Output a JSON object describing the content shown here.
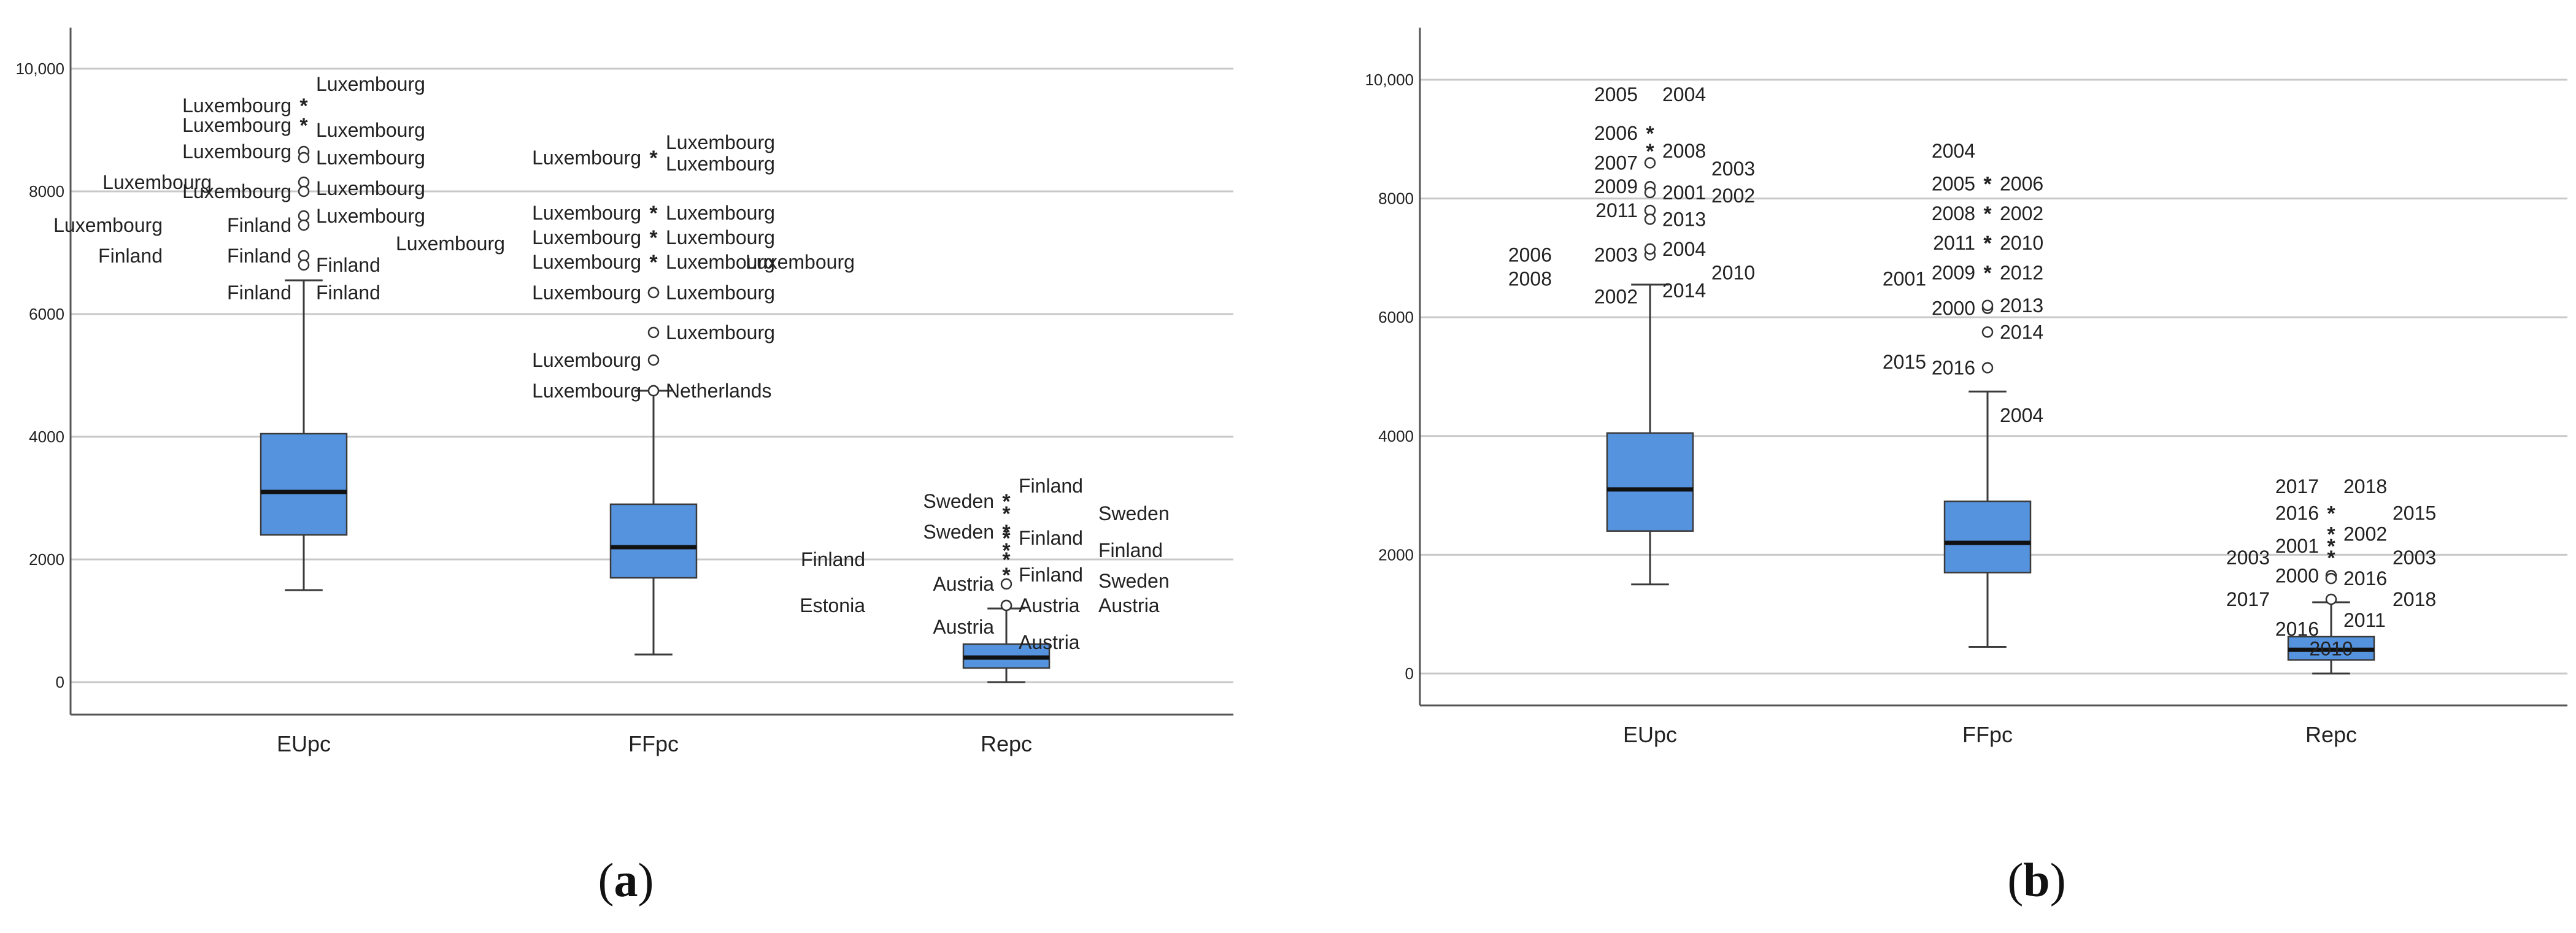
{
  "colors": {
    "box_fill": "#5593de",
    "box_stroke": "#3a3a3a",
    "grid": "#c8c8c8",
    "axis": "#555555",
    "text": "#222222"
  },
  "chart_data": [
    {
      "panel": "a",
      "caption": "a",
      "type": "boxplot",
      "ylim": [
        0,
        10000
      ],
      "yticks": [
        0,
        2000,
        4000,
        6000,
        8000,
        10000
      ],
      "yticklabels": [
        "0",
        "2000",
        "4000",
        "6000",
        "8000",
        "10,000"
      ],
      "grid": true,
      "categories": [
        "EUpc",
        "FFpc",
        "Repc"
      ],
      "boxes": [
        {
          "name": "EUpc",
          "min": 1500,
          "q1": 2400,
          "median": 3100,
          "q3": 4050,
          "max": 6550
        },
        {
          "name": "FFpc",
          "min": 450,
          "q1": 1700,
          "median": 2200,
          "q3": 2900,
          "max": 4750
        },
        {
          "name": "Repc",
          "min": 0,
          "q1": 230,
          "median": 400,
          "q3": 620,
          "max": 1200
        }
      ],
      "outlier_labels": [
        {
          "group": "EUpc",
          "text": "Luxembourg",
          "y": 9750,
          "side": "right",
          "marker": ""
        },
        {
          "group": "EUpc",
          "text": "Luxembourg",
          "y": 9400,
          "side": "left",
          "marker": "star"
        },
        {
          "group": "EUpc",
          "text": "Luxembourg",
          "y": 9080,
          "side": "left",
          "marker": "star"
        },
        {
          "group": "EUpc",
          "text": "Luxembourg",
          "y": 9000,
          "side": "right",
          "marker": ""
        },
        {
          "group": "EUpc",
          "text": "Luxembourg",
          "y": 8650,
          "side": "left",
          "marker": "circle"
        },
        {
          "group": "EUpc",
          "text": "Luxembourg",
          "y": 8550,
          "side": "right",
          "marker": "circle"
        },
        {
          "group": "EUpc",
          "text": "Luxembourg",
          "y": 8150,
          "side": "far-left",
          "marker": "circle"
        },
        {
          "group": "EUpc",
          "text": "Luxembourg",
          "y": 8000,
          "side": "left",
          "marker": "circle"
        },
        {
          "group": "EUpc",
          "text": "Luxembourg",
          "y": 8050,
          "side": "right",
          "marker": ""
        },
        {
          "group": "EUpc",
          "text": "Luxembourg",
          "y": 7600,
          "side": "right",
          "marker": "circle"
        },
        {
          "group": "EUpc",
          "text": "Luxembourg",
          "y": 7450,
          "side": "left2",
          "marker": ""
        },
        {
          "group": "EUpc",
          "text": "Finland",
          "y": 7450,
          "side": "left",
          "marker": "circle"
        },
        {
          "group": "EUpc",
          "text": "Luxembourg",
          "y": 7150,
          "side": "far-right",
          "marker": ""
        },
        {
          "group": "EUpc",
          "text": "Finland",
          "y": 6950,
          "side": "left2",
          "marker": ""
        },
        {
          "group": "EUpc",
          "text": "Finland",
          "y": 6950,
          "side": "left",
          "marker": "circle"
        },
        {
          "group": "EUpc",
          "text": "Finland",
          "y": 6800,
          "side": "right",
          "marker": "circle"
        },
        {
          "group": "EUpc",
          "text": "Finland",
          "y": 6350,
          "side": "left",
          "marker": ""
        },
        {
          "group": "EUpc",
          "text": "Finland",
          "y": 6350,
          "side": "right",
          "marker": ""
        },
        {
          "group": "FFpc",
          "text": "Luxembourg",
          "y": 8800,
          "side": "right",
          "marker": ""
        },
        {
          "group": "FFpc",
          "text": "Luxembourg",
          "y": 8550,
          "side": "left",
          "marker": "star"
        },
        {
          "group": "FFpc",
          "text": "Luxembourg",
          "y": 8450,
          "side": "right",
          "marker": ""
        },
        {
          "group": "FFpc",
          "text": "Luxembourg",
          "y": 7650,
          "side": "left",
          "marker": "star"
        },
        {
          "group": "FFpc",
          "text": "Luxembourg",
          "y": 7650,
          "side": "right",
          "marker": ""
        },
        {
          "group": "FFpc",
          "text": "Luxembourg",
          "y": 7250,
          "side": "left",
          "marker": "star"
        },
        {
          "group": "FFpc",
          "text": "Luxembourg",
          "y": 7250,
          "side": "right",
          "marker": ""
        },
        {
          "group": "FFpc",
          "text": "Luxembourg",
          "y": 6850,
          "side": "left",
          "marker": "star"
        },
        {
          "group": "FFpc",
          "text": "Luxembourg",
          "y": 6850,
          "side": "right",
          "marker": ""
        },
        {
          "group": "FFpc",
          "text": "Luxembourg",
          "y": 6850,
          "side": "far-right",
          "marker": ""
        },
        {
          "group": "FFpc",
          "text": "Luxembourg",
          "y": 6350,
          "side": "left",
          "marker": "circle"
        },
        {
          "group": "FFpc",
          "text": "Luxembourg",
          "y": 6350,
          "side": "right",
          "marker": "circle"
        },
        {
          "group": "FFpc",
          "text": "Luxembourg",
          "y": 5700,
          "side": "right",
          "marker": "circle"
        },
        {
          "group": "FFpc",
          "text": "Luxembourg",
          "y": 5250,
          "side": "left",
          "marker": "circle"
        },
        {
          "group": "FFpc",
          "text": "Luxembourg",
          "y": 4750,
          "side": "left",
          "marker": "circle"
        },
        {
          "group": "FFpc",
          "text": "Netherlands",
          "y": 4750,
          "side": "right",
          "marker": "circle"
        },
        {
          "group": "Repc",
          "text": "Finland",
          "y": 3200,
          "side": "right",
          "marker": ""
        },
        {
          "group": "Repc",
          "text": "Sweden",
          "y": 2950,
          "side": "left",
          "marker": "star"
        },
        {
          "group": "Repc",
          "text": "Sweden",
          "y": 2750,
          "side": "far-right",
          "marker": "star"
        },
        {
          "group": "Repc",
          "text": "Sweden",
          "y": 2450,
          "side": "left",
          "marker": "star"
        },
        {
          "group": "Repc",
          "text": "Finland",
          "y": 2350,
          "side": "right",
          "marker": "star"
        },
        {
          "group": "Repc",
          "text": "Finland",
          "y": 2150,
          "side": "far-right",
          "marker": "star"
        },
        {
          "group": "Repc",
          "text": "Finland",
          "y": 2000,
          "side": "left2",
          "marker": "star"
        },
        {
          "group": "Repc",
          "text": "Finland",
          "y": 1750,
          "side": "right",
          "marker": "star"
        },
        {
          "group": "Repc",
          "text": "Sweden",
          "y": 1650,
          "side": "far-right",
          "marker": ""
        },
        {
          "group": "Repc",
          "text": "Austria",
          "y": 1600,
          "side": "left",
          "marker": "circle"
        },
        {
          "group": "Repc",
          "text": "Austria",
          "y": 1250,
          "side": "right",
          "marker": "circle"
        },
        {
          "group": "Repc",
          "text": "Austria",
          "y": 1250,
          "side": "far-right",
          "marker": ""
        },
        {
          "group": "Repc",
          "text": "Estonia",
          "y": 1250,
          "side": "left2",
          "marker": "circle"
        },
        {
          "group": "Repc",
          "text": "Austria",
          "y": 900,
          "side": "left",
          "marker": ""
        },
        {
          "group": "Repc",
          "text": "Austria",
          "y": 650,
          "side": "right",
          "marker": ""
        }
      ]
    },
    {
      "panel": "b",
      "caption": "b",
      "type": "boxplot",
      "ylim": [
        0,
        10000
      ],
      "yticks": [
        0,
        2000,
        4000,
        6000,
        8000,
        10000
      ],
      "yticklabels": [
        "0",
        "2000",
        "4000",
        "6000",
        "8000",
        "10,000"
      ],
      "grid": true,
      "categories": [
        "EUpc",
        "FFpc",
        "Repc"
      ],
      "boxes": [
        {
          "name": "EUpc",
          "min": 1500,
          "q1": 2400,
          "median": 3100,
          "q3": 4050,
          "max": 6550
        },
        {
          "name": "FFpc",
          "min": 450,
          "q1": 1700,
          "median": 2200,
          "q3": 2900,
          "max": 4750
        },
        {
          "name": "Repc",
          "min": 0,
          "q1": 230,
          "median": 400,
          "q3": 620,
          "max": 1200
        }
      ],
      "outlier_labels": [
        {
          "group": "EUpc",
          "text": "2005",
          "y": 9750,
          "side": "left",
          "marker": ""
        },
        {
          "group": "EUpc",
          "text": "2004",
          "y": 9750,
          "side": "right",
          "marker": ""
        },
        {
          "group": "EUpc",
          "text": "2006",
          "y": 9100,
          "side": "left",
          "marker": "star"
        },
        {
          "group": "EUpc",
          "text": "2008",
          "y": 8800,
          "side": "right",
          "marker": "star"
        },
        {
          "group": "EUpc",
          "text": "2007",
          "y": 8600,
          "side": "left",
          "marker": "circle"
        },
        {
          "group": "EUpc",
          "text": "2003",
          "y": 8500,
          "side": "far-right",
          "marker": ""
        },
        {
          "group": "EUpc",
          "text": "2009",
          "y": 8200,
          "side": "left",
          "marker": "circle"
        },
        {
          "group": "EUpc",
          "text": "2001",
          "y": 8100,
          "side": "right",
          "marker": "circle"
        },
        {
          "group": "EUpc",
          "text": "2002",
          "y": 8050,
          "side": "far-right",
          "marker": ""
        },
        {
          "group": "EUpc",
          "text": "2011",
          "y": 7800,
          "side": "left",
          "marker": "circle"
        },
        {
          "group": "EUpc",
          "text": "2013",
          "y": 7650,
          "side": "right",
          "marker": "circle"
        },
        {
          "group": "EUpc",
          "text": "2006",
          "y": 7050,
          "side": "left2",
          "marker": ""
        },
        {
          "group": "EUpc",
          "text": "2003",
          "y": 7050,
          "side": "left",
          "marker": "circle"
        },
        {
          "group": "EUpc",
          "text": "2004",
          "y": 7150,
          "side": "right",
          "marker": "circle"
        },
        {
          "group": "EUpc",
          "text": "2008",
          "y": 6650,
          "side": "left2",
          "marker": ""
        },
        {
          "group": "EUpc",
          "text": "2010",
          "y": 6750,
          "side": "far-right",
          "marker": ""
        },
        {
          "group": "EUpc",
          "text": "2002",
          "y": 6350,
          "side": "left",
          "marker": ""
        },
        {
          "group": "EUpc",
          "text": "2014",
          "y": 6450,
          "side": "right",
          "marker": ""
        },
        {
          "group": "FFpc",
          "text": "2004",
          "y": 8800,
          "side": "left",
          "marker": ""
        },
        {
          "group": "FFpc",
          "text": "2005",
          "y": 8250,
          "side": "left",
          "marker": "star"
        },
        {
          "group": "FFpc",
          "text": "2006",
          "y": 8250,
          "side": "right",
          "marker": "star"
        },
        {
          "group": "FFpc",
          "text": "2008",
          "y": 7750,
          "side": "left",
          "marker": "star"
        },
        {
          "group": "FFpc",
          "text": "2002",
          "y": 7750,
          "side": "right",
          "marker": ""
        },
        {
          "group": "FFpc",
          "text": "2011",
          "y": 7250,
          "side": "left",
          "marker": "star"
        },
        {
          "group": "FFpc",
          "text": "2010",
          "y": 7250,
          "side": "right",
          "marker": "star"
        },
        {
          "group": "FFpc",
          "text": "2009",
          "y": 6750,
          "side": "left",
          "marker": "star"
        },
        {
          "group": "FFpc",
          "text": "2012",
          "y": 6750,
          "side": "right",
          "marker": ""
        },
        {
          "group": "FFpc",
          "text": "2001",
          "y": 6650,
          "side": "far-left",
          "marker": ""
        },
        {
          "group": "FFpc",
          "text": "2000",
          "y": 6150,
          "side": "left",
          "marker": "circle"
        },
        {
          "group": "FFpc",
          "text": "2013",
          "y": 6200,
          "side": "right",
          "marker": "circle"
        },
        {
          "group": "FFpc",
          "text": "2014",
          "y": 5750,
          "side": "right",
          "marker": "circle"
        },
        {
          "group": "FFpc",
          "text": "2015",
          "y": 5250,
          "side": "far-left",
          "marker": ""
        },
        {
          "group": "FFpc",
          "text": "2016",
          "y": 5150,
          "side": "left",
          "marker": "circle"
        },
        {
          "group": "FFpc",
          "text": "2004",
          "y": 4350,
          "side": "right",
          "marker": ""
        },
        {
          "group": "Repc",
          "text": "2017",
          "y": 3150,
          "side": "left",
          "marker": ""
        },
        {
          "group": "Repc",
          "text": "2018",
          "y": 3150,
          "side": "right",
          "marker": ""
        },
        {
          "group": "Repc",
          "text": "2016",
          "y": 2700,
          "side": "left",
          "marker": "star"
        },
        {
          "group": "Repc",
          "text": "2015",
          "y": 2700,
          "side": "far-right",
          "marker": ""
        },
        {
          "group": "Repc",
          "text": "2002",
          "y": 2350,
          "side": "right",
          "marker": "star"
        },
        {
          "group": "Repc",
          "text": "2001",
          "y": 2150,
          "side": "left",
          "marker": "star"
        },
        {
          "group": "Repc",
          "text": "2003",
          "y": 1950,
          "side": "far-left",
          "marker": "star"
        },
        {
          "group": "Repc",
          "text": "2003",
          "y": 1950,
          "side": "far-right",
          "marker": ""
        },
        {
          "group": "Repc",
          "text": "2000",
          "y": 1650,
          "side": "left",
          "marker": "circle"
        },
        {
          "group": "Repc",
          "text": "2016",
          "y": 1600,
          "side": "right",
          "marker": "circle"
        },
        {
          "group": "Repc",
          "text": "2017",
          "y": 1250,
          "side": "far-left",
          "marker": "circle"
        },
        {
          "group": "Repc",
          "text": "2018",
          "y": 1250,
          "side": "far-right",
          "marker": ""
        },
        {
          "group": "Repc",
          "text": "2011",
          "y": 900,
          "side": "right",
          "marker": ""
        },
        {
          "group": "Repc",
          "text": "2016",
          "y": 750,
          "side": "left",
          "marker": ""
        },
        {
          "group": "Repc",
          "text": "2010",
          "y": 420,
          "side": "inside",
          "marker": ""
        }
      ]
    }
  ]
}
